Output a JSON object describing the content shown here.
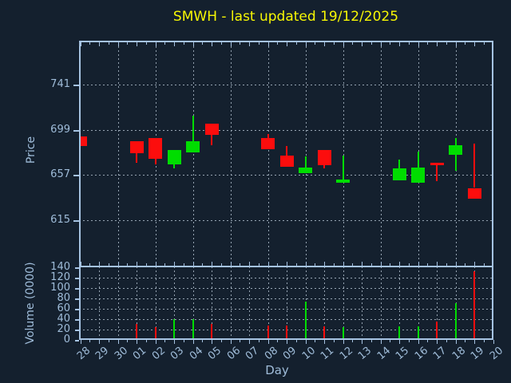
{
  "title": {
    "text": "SMWH - last updated 19/12/2025"
  },
  "colors": {
    "background": "#14202e",
    "axis": "#a6c3e2",
    "tick_text": "#9fbcd9",
    "grid": "#95a3b1",
    "title": "#f7f704",
    "up": "#00dd00",
    "down": "#fc0d0d"
  },
  "price_axis": {
    "label": "Price",
    "ticks": [
      741,
      699,
      657,
      615
    ]
  },
  "volume_axis": {
    "label": "Volume (0000)",
    "ticks": [
      140,
      120,
      100,
      80,
      60,
      40,
      20,
      0
    ]
  },
  "x_axis": {
    "label": "Day",
    "days": [
      "28",
      "29",
      "30",
      "01",
      "02",
      "03",
      "04",
      "05",
      "06",
      "07",
      "08",
      "09",
      "10",
      "11",
      "12",
      "13",
      "14",
      "15",
      "16",
      "17",
      "18",
      "19",
      "20"
    ]
  },
  "chart_data": {
    "type": "candlestick-with-volume",
    "title": "SMWH - last updated 19/12/2025",
    "symbol": "SMWH",
    "x_categories": [
      "28",
      "29",
      "30",
      "01",
      "02",
      "03",
      "04",
      "05",
      "06",
      "07",
      "08",
      "09",
      "10",
      "11",
      "12",
      "13",
      "14",
      "15",
      "16",
      "17",
      "18",
      "19",
      "20"
    ],
    "price_axis_ticks": [
      615,
      657,
      699,
      741
    ],
    "price_ylim": [
      571,
      780
    ],
    "volume_ylim": [
      0,
      140
    ],
    "volume_units": "0000",
    "grid": {
      "price_vertical": "every 2 days",
      "volume_vertical": "every day",
      "style": "dashed"
    },
    "candles": [
      {
        "day": "28",
        "open": 693,
        "high": 693,
        "low": 684,
        "close": 684,
        "direction": "down",
        "volume": 0
      },
      {
        "day": "01",
        "open": 688,
        "high": 688,
        "low": 668,
        "close": 677,
        "direction": "down",
        "volume": 31
      },
      {
        "day": "02",
        "open": 691,
        "high": 691,
        "low": 667,
        "close": 672,
        "direction": "down",
        "volume": 24
      },
      {
        "day": "03",
        "open": 667,
        "high": 680,
        "low": 663,
        "close": 680,
        "direction": "up",
        "volume": 40
      },
      {
        "day": "04",
        "open": 678,
        "high": 712,
        "low": 678,
        "close": 688,
        "direction": "up",
        "volume": 40
      },
      {
        "day": "05",
        "open": 705,
        "high": 705,
        "low": 685,
        "close": 694,
        "direction": "down",
        "volume": 31
      },
      {
        "day": "08",
        "open": 691,
        "high": 695,
        "low": 681,
        "close": 681,
        "direction": "down",
        "volume": 27
      },
      {
        "day": "09",
        "open": 675,
        "high": 684,
        "low": 665,
        "close": 665,
        "direction": "down",
        "volume": 28
      },
      {
        "day": "10",
        "open": 659,
        "high": 674,
        "low": 659,
        "close": 664,
        "direction": "up",
        "volume": 74
      },
      {
        "day": "11",
        "open": 680,
        "high": 680,
        "low": 663,
        "close": 666,
        "direction": "down",
        "volume": 26
      },
      {
        "day": "12",
        "open": 650,
        "high": 675,
        "low": 650,
        "close": 653,
        "direction": "up",
        "volume": 25
      },
      {
        "day": "15",
        "open": 652,
        "high": 671,
        "low": 652,
        "close": 663,
        "direction": "up",
        "volume": 26
      },
      {
        "day": "16",
        "open": 650,
        "high": 679,
        "low": 650,
        "close": 664,
        "direction": "up",
        "volume": 26
      },
      {
        "day": "17",
        "open": 668,
        "high": 668,
        "low": 651,
        "close": 666,
        "direction": "down",
        "volume": 36
      },
      {
        "day": "18",
        "open": 676,
        "high": 691,
        "low": 661,
        "close": 685,
        "direction": "up",
        "volume": 71
      },
      {
        "day": "19",
        "open": 645,
        "high": 686,
        "low": 635,
        "close": 635,
        "direction": "down",
        "volume": 133
      }
    ]
  }
}
